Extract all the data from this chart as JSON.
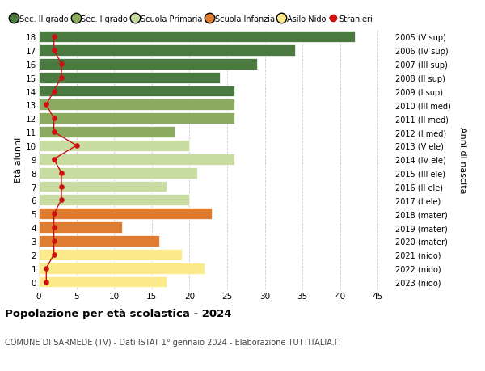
{
  "ages": [
    0,
    1,
    2,
    3,
    4,
    5,
    6,
    7,
    8,
    9,
    10,
    11,
    12,
    13,
    14,
    15,
    16,
    17,
    18
  ],
  "bar_values": [
    17,
    22,
    19,
    16,
    11,
    23,
    20,
    17,
    21,
    26,
    20,
    18,
    26,
    26,
    26,
    24,
    29,
    34,
    42
  ],
  "bar_colors": [
    "#fce98a",
    "#fce98a",
    "#fce98a",
    "#e07c30",
    "#e07c30",
    "#e07c30",
    "#c8dba0",
    "#c8dba0",
    "#c8dba0",
    "#c8dba0",
    "#c8dba0",
    "#8aab60",
    "#8aab60",
    "#8aab60",
    "#4a7a40",
    "#4a7a40",
    "#4a7a40",
    "#4a7a40",
    "#4a7a40"
  ],
  "stranieri": [
    1,
    1,
    2,
    2,
    2,
    2,
    3,
    3,
    3,
    2,
    5,
    2,
    2,
    1,
    2,
    3,
    3,
    2,
    2
  ],
  "right_labels": [
    "2023 (nido)",
    "2022 (nido)",
    "2021 (nido)",
    "2020 (mater)",
    "2019 (mater)",
    "2018 (mater)",
    "2017 (I ele)",
    "2016 (II ele)",
    "2015 (III ele)",
    "2014 (IV ele)",
    "2013 (V ele)",
    "2012 (I med)",
    "2011 (II med)",
    "2010 (III med)",
    "2009 (I sup)",
    "2008 (II sup)",
    "2007 (III sup)",
    "2006 (IV sup)",
    "2005 (V sup)"
  ],
  "legend_labels": [
    "Sec. II grado",
    "Sec. I grado",
    "Scuola Primaria",
    "Scuola Infanzia",
    "Asilo Nido",
    "Stranieri"
  ],
  "legend_colors": [
    "#4a7a40",
    "#8aab60",
    "#c8dba0",
    "#e07c30",
    "#fce98a",
    "#cc1111"
  ],
  "title": "Popolazione per età scolastica - 2024",
  "subtitle": "COMUNE DI SARMEDE (TV) - Dati ISTAT 1° gennaio 2024 - Elaborazione TUTTITALIA.IT",
  "ylabel_left": "Età alunni",
  "ylabel_right": "Anni di nascita",
  "xlim": [
    0,
    47
  ],
  "xticks": [
    0,
    5,
    10,
    15,
    20,
    25,
    30,
    35,
    40,
    45
  ],
  "background_color": "#ffffff",
  "grid_color": "#cccccc"
}
